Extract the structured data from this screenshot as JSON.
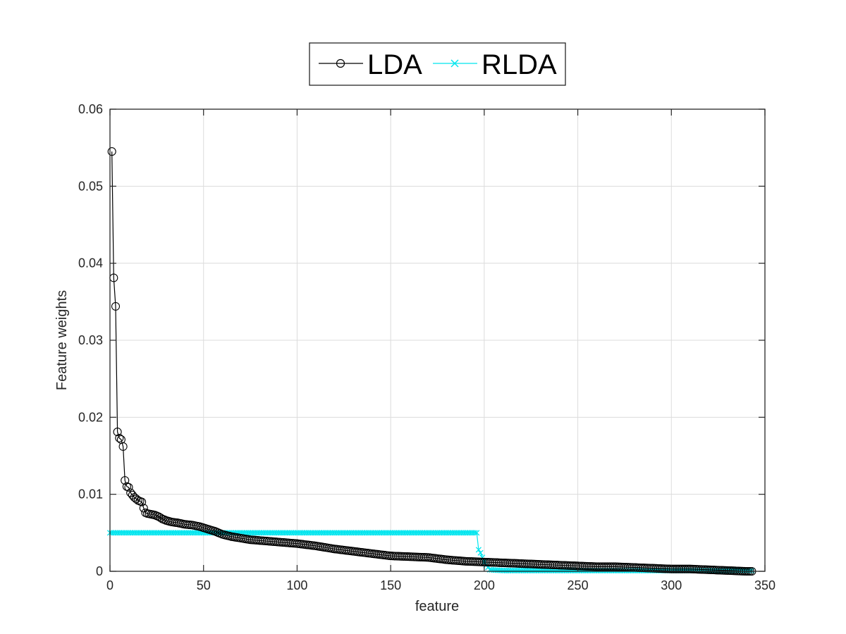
{
  "chart_data": {
    "type": "line",
    "title": "",
    "xlabel": "feature",
    "ylabel": "Feature weights",
    "xlim": [
      0,
      350
    ],
    "ylim": [
      0,
      0.06
    ],
    "xticks": [
      0,
      50,
      100,
      150,
      200,
      250,
      300,
      350
    ],
    "yticks": [
      0,
      0.01,
      0.02,
      0.03,
      0.04,
      0.05,
      0.06
    ],
    "xtick_labels": [
      "0",
      "50",
      "100",
      "150",
      "200",
      "250",
      "300",
      "350"
    ],
    "ytick_labels": [
      "0",
      "0.01",
      "0.02",
      "0.03",
      "0.04",
      "0.05",
      "0.06"
    ],
    "grid": true,
    "legend_position": "top-center",
    "series": [
      {
        "name": "LDA",
        "color": "#000000",
        "marker": "circle",
        "points": [
          [
            1,
            0.0545
          ],
          [
            2,
            0.0381
          ],
          [
            3,
            0.0344
          ],
          [
            4,
            0.0181
          ],
          [
            5,
            0.0173
          ],
          [
            6,
            0.0171
          ],
          [
            7,
            0.0162
          ],
          [
            8,
            0.0118
          ],
          [
            9,
            0.011
          ],
          [
            10,
            0.0109
          ],
          [
            11,
            0.0102
          ],
          [
            12,
            0.0099
          ],
          [
            13,
            0.0096
          ],
          [
            14,
            0.0094
          ],
          [
            15,
            0.0092
          ],
          [
            16,
            0.0091
          ],
          [
            17,
            0.009
          ],
          [
            18,
            0.0082
          ],
          [
            19,
            0.0076
          ],
          [
            20,
            0.0075
          ],
          [
            22,
            0.0074
          ],
          [
            24,
            0.0073
          ],
          [
            26,
            0.0071
          ],
          [
            28,
            0.0068
          ],
          [
            30,
            0.0066
          ],
          [
            33,
            0.0064
          ],
          [
            36,
            0.0063
          ],
          [
            40,
            0.0061
          ],
          [
            44,
            0.006
          ],
          [
            48,
            0.0058
          ],
          [
            52,
            0.0055
          ],
          [
            56,
            0.0052
          ],
          [
            60,
            0.0048
          ],
          [
            65,
            0.0045
          ],
          [
            70,
            0.0043
          ],
          [
            75,
            0.0041
          ],
          [
            80,
            0.004
          ],
          [
            90,
            0.0038
          ],
          [
            100,
            0.0036
          ],
          [
            110,
            0.0033
          ],
          [
            120,
            0.0029
          ],
          [
            130,
            0.0026
          ],
          [
            140,
            0.0023
          ],
          [
            150,
            0.002
          ],
          [
            160,
            0.0019
          ],
          [
            170,
            0.0018
          ],
          [
            180,
            0.0015
          ],
          [
            190,
            0.0013
          ],
          [
            200,
            0.0012
          ],
          [
            210,
            0.0011
          ],
          [
            220,
            0.001
          ],
          [
            230,
            0.0009
          ],
          [
            240,
            0.0008
          ],
          [
            250,
            0.0007
          ],
          [
            260,
            0.0006
          ],
          [
            270,
            0.0006
          ],
          [
            280,
            0.0005
          ],
          [
            290,
            0.0004
          ],
          [
            300,
            0.0003
          ],
          [
            310,
            0.0003
          ],
          [
            320,
            0.0002
          ],
          [
            330,
            0.0001
          ],
          [
            340,
            0.0
          ],
          [
            343,
            0.0
          ]
        ]
      },
      {
        "name": "RLDA",
        "color": "#00e5ee",
        "marker": "x",
        "points": [
          [
            0,
            0.005
          ],
          [
            196,
            0.005
          ],
          [
            197,
            0.0028
          ],
          [
            198,
            0.0024
          ],
          [
            199,
            0.0018
          ],
          [
            200,
            0.0012
          ],
          [
            201,
            0.0008
          ],
          [
            202,
            0.0005
          ],
          [
            203,
            0.0002
          ],
          [
            210,
            0.0001
          ],
          [
            220,
            0.0001
          ],
          [
            240,
            0.0001
          ],
          [
            260,
            0.0001
          ],
          [
            280,
            0.0001
          ],
          [
            300,
            0.0001
          ],
          [
            320,
            0.0001
          ],
          [
            343,
            0.0001
          ]
        ]
      }
    ]
  }
}
